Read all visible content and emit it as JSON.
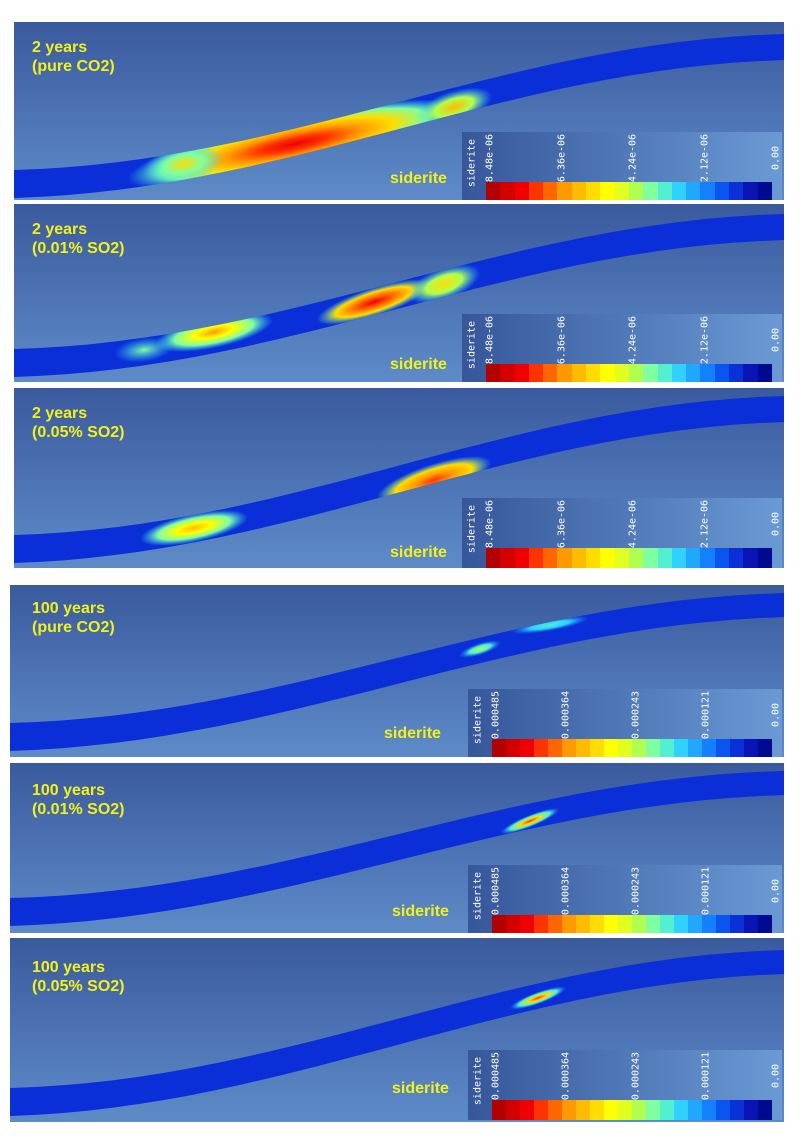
{
  "panels": [
    {
      "label_line1": "2 years",
      "label_line2": "(pure CO2)",
      "legend_title": "siderite",
      "legend_name": "siderite",
      "ticks": [
        "8.48e-06",
        "6.36e-06",
        "4.24e-06",
        "2.12e-06",
        "0.00"
      ]
    },
    {
      "label_line1": "2 years",
      "label_line2": "(0.01% SO2)",
      "legend_title": "siderite",
      "legend_name": "siderite",
      "ticks": [
        "8.48e-06",
        "6.36e-06",
        "4.24e-06",
        "2.12e-06",
        "0.00"
      ]
    },
    {
      "label_line1": "2 years",
      "label_line2": "(0.05% SO2)",
      "legend_title": "siderite",
      "legend_name": "siderite",
      "ticks": [
        "8.48e-06",
        "6.36e-06",
        "4.24e-06",
        "2.12e-06",
        "0.00"
      ]
    },
    {
      "label_line1": "100 years",
      "label_line2": "(pure CO2)",
      "legend_title": "siderite",
      "legend_name": "siderite",
      "ticks": [
        "0.000485",
        "0.000364",
        "0.000243",
        "0.000121",
        "0.00"
      ]
    },
    {
      "label_line1": "100 years",
      "label_line2": "(0.01% SO2)",
      "legend_title": "siderite",
      "legend_name": "siderite",
      "ticks": [
        "0.000485",
        "0.000364",
        "0.000243",
        "0.000121",
        "0.00"
      ]
    },
    {
      "label_line1": "100 years",
      "label_line2": "(0.05% SO2)",
      "legend_title": "siderite",
      "legend_name": "siderite",
      "ticks": [
        "0.000485",
        "0.000364",
        "0.000243",
        "0.000121",
        "0.00"
      ]
    }
  ],
  "colors": {
    "background_top": "#3a5a9e",
    "background_bottom": "#5e8bc8",
    "layer": "#0a2fd8",
    "label": "#f2f21a",
    "colormap": [
      "#b30000",
      "#d40000",
      "#f00000",
      "#ff3300",
      "#ff6600",
      "#ff9900",
      "#ffbb00",
      "#ffdd00",
      "#ffff00",
      "#e0ff20",
      "#b0ff50",
      "#80ffa0",
      "#50f0d0",
      "#30d0ff",
      "#20a8ff",
      "#1480ff",
      "#0a55f0",
      "#0a30d8",
      "#0a14b4",
      "#000a90"
    ]
  }
}
